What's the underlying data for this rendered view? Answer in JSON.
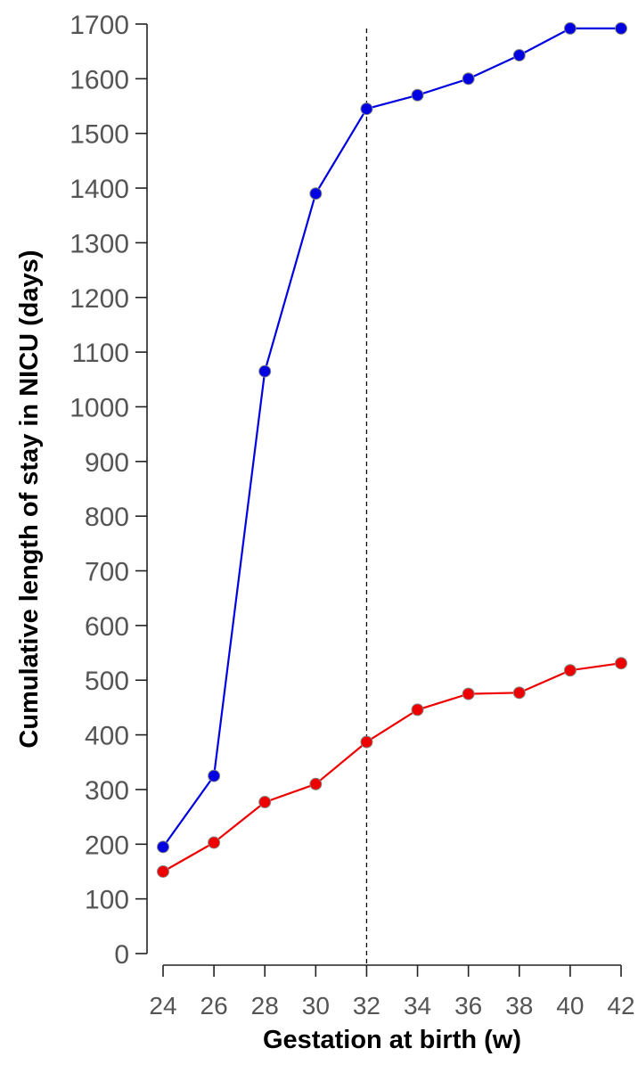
{
  "chart_data": {
    "type": "line",
    "xlabel": "Gestation at birth (w)",
    "ylabel": "Cumulative length of stay in NICU (days)",
    "xlim": [
      24,
      42
    ],
    "ylim": [
      0,
      1700
    ],
    "x_ticks": [
      24,
      26,
      28,
      30,
      32,
      34,
      36,
      38,
      40,
      42
    ],
    "y_ticks": [
      0,
      100,
      200,
      300,
      400,
      500,
      600,
      700,
      800,
      900,
      1000,
      1100,
      1200,
      1300,
      1400,
      1500,
      1600,
      1700
    ],
    "grid": false,
    "legend": "none",
    "reference_line": {
      "x": 32,
      "style": "dashed",
      "color": "#000000"
    },
    "series": [
      {
        "color": "#0000e0",
        "x": [
          24,
          26,
          28,
          30,
          32,
          34,
          36,
          38,
          40,
          42
        ],
        "values": [
          195,
          325,
          1065,
          1390,
          1545,
          1570,
          1600,
          1643,
          1692,
          1692
        ]
      },
      {
        "color": "#ee0000",
        "x": [
          24,
          26,
          28,
          30,
          32,
          34,
          36,
          38,
          40,
          42
        ],
        "values": [
          150,
          203,
          277,
          310,
          387,
          446,
          475,
          477,
          518,
          531
        ]
      }
    ]
  }
}
